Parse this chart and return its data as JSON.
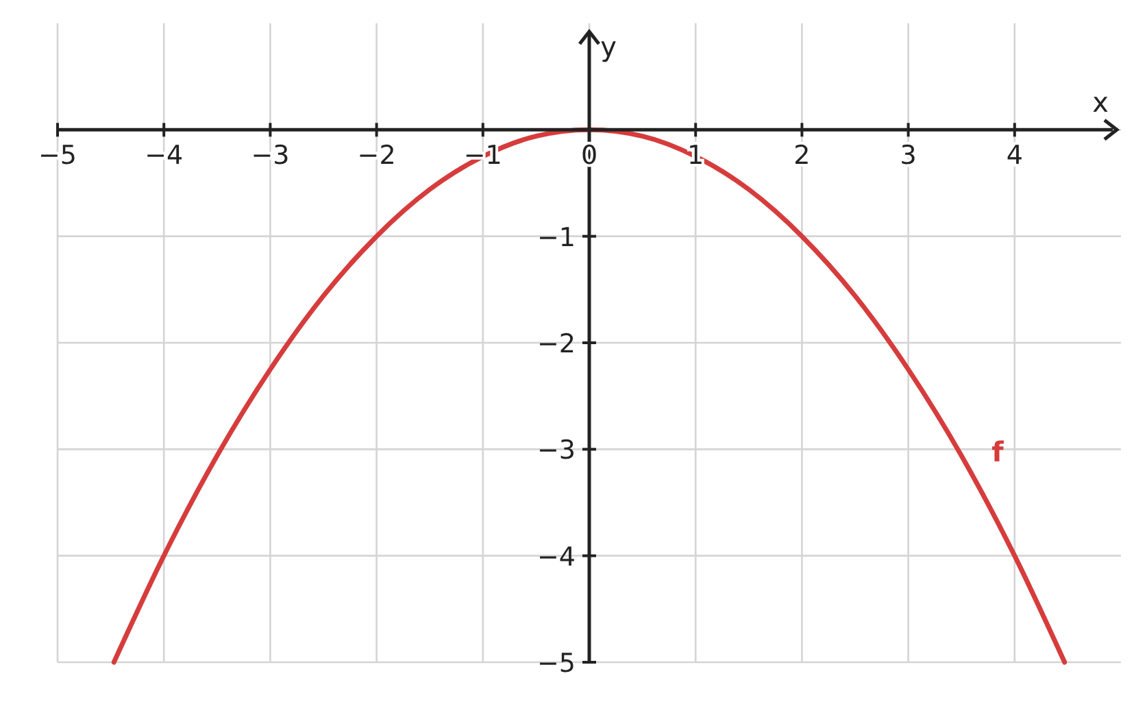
{
  "chart_data": {
    "type": "line",
    "xlabel": "x",
    "ylabel": "y",
    "xlim": [
      -5,
      5
    ],
    "ylim": [
      -5,
      1
    ],
    "xticks": [
      -5,
      -4,
      -3,
      -2,
      -1,
      0,
      1,
      2,
      3,
      4
    ],
    "yticks": [
      -5,
      -4,
      -3,
      -2,
      -1,
      {
        "value": 0,
        "label": null
      }
    ],
    "grid": true,
    "marker": "none",
    "line_style": "solid",
    "series": [
      {
        "name": "f",
        "color": "#d63c3c",
        "x": [
          -4.47,
          -4,
          -3.5,
          -3,
          -2.5,
          -2,
          -1.5,
          -1,
          -0.5,
          0,
          0.5,
          1,
          1.5,
          2,
          2.5,
          3,
          3.5,
          4,
          4.47
        ],
        "values": [
          -5,
          -4,
          -3.06,
          -2.25,
          -1.56,
          -1,
          -0.56,
          -0.25,
          -0.06,
          0,
          -0.06,
          -0.25,
          -0.56,
          -1,
          -1.56,
          -2.25,
          -3.06,
          -4,
          -5
        ]
      }
    ]
  }
}
